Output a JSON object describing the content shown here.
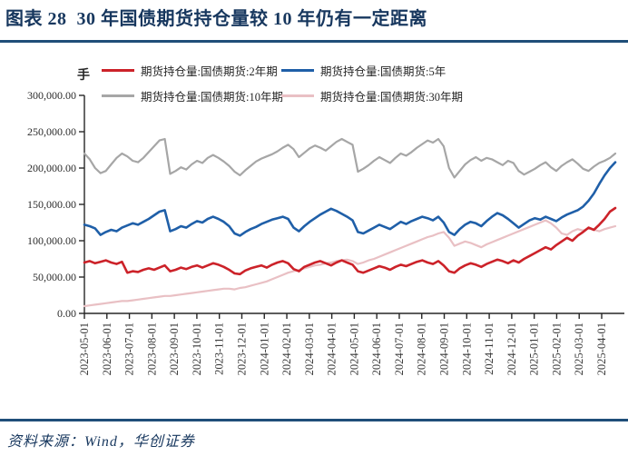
{
  "header": {
    "title": "图表 28  30 年国债期货持仓量较 10 年仍有一定距离"
  },
  "footer": {
    "source": "资料来源：Wind，华创证券"
  },
  "chart_data": {
    "type": "line",
    "title": "30 年国债期货持仓量较 10 年仍有一定距离",
    "unit_label": "手",
    "grid": false,
    "legend_position": "top",
    "ylim": [
      0,
      300000
    ],
    "ytick_step": 50000,
    "ytick_labels": [
      "0.00",
      "50,000.00",
      "100,000.00",
      "150,000.00",
      "200,000.00",
      "250,000.00",
      "300,000.00"
    ],
    "x_tick_labels": [
      "2023-05-01",
      "2023-06-01",
      "2023-07-01",
      "2023-08-01",
      "2023-09-01",
      "2023-10-01",
      "2023-11-01",
      "2023-12-01",
      "2024-01-01",
      "2024-02-01",
      "2024-03-01",
      "2024-04-01",
      "2024-05-01",
      "2024-06-01",
      "2024-07-01",
      "2024-08-01",
      "2024-09-01",
      "2024-10-01",
      "2024-11-01",
      "2024-12-01",
      "2025-01-01",
      "2025-02-01",
      "2025-03-01",
      "2025-04-01"
    ],
    "x_range_note": "weekly observations 2023-05-01 to 2025-04-18",
    "axis_color": "#262626",
    "series": [
      {
        "name": "期货持仓量:国债期货:2年期",
        "color": "#cc2229",
        "width": 2.6,
        "values": [
          70000,
          72000,
          69000,
          71000,
          73000,
          70000,
          68000,
          71000,
          56000,
          58000,
          57000,
          60000,
          62000,
          60000,
          63000,
          66000,
          58000,
          60000,
          63000,
          61000,
          64000,
          66000,
          63000,
          66000,
          69000,
          67000,
          64000,
          60000,
          55000,
          54000,
          59000,
          62000,
          64000,
          66000,
          63000,
          67000,
          70000,
          72000,
          69000,
          61000,
          58000,
          64000,
          67000,
          70000,
          72000,
          69000,
          66000,
          70000,
          73000,
          70000,
          67000,
          58000,
          56000,
          59000,
          62000,
          65000,
          63000,
          60000,
          64000,
          67000,
          65000,
          68000,
          71000,
          73000,
          70000,
          68000,
          72000,
          66000,
          58000,
          56000,
          62000,
          66000,
          69000,
          67000,
          64000,
          68000,
          71000,
          74000,
          72000,
          69000,
          73000,
          70000,
          75000,
          79000,
          83000,
          87000,
          91000,
          88000,
          94000,
          99000,
          104000,
          100000,
          107000,
          112000,
          118000,
          115000,
          122000,
          130000,
          140000,
          145000
        ]
      },
      {
        "name": "期货持仓量:国债期货:5年",
        "color": "#1f5fa8",
        "width": 2.6,
        "values": [
          122000,
          120000,
          117000,
          108000,
          112000,
          115000,
          113000,
          118000,
          121000,
          124000,
          122000,
          126000,
          130000,
          135000,
          140000,
          142000,
          113000,
          116000,
          120000,
          118000,
          123000,
          127000,
          125000,
          130000,
          133000,
          130000,
          126000,
          120000,
          110000,
          107000,
          112000,
          116000,
          119000,
          123000,
          126000,
          129000,
          131000,
          133000,
          130000,
          118000,
          113000,
          120000,
          126000,
          131000,
          136000,
          140000,
          144000,
          141000,
          137000,
          133000,
          128000,
          112000,
          110000,
          114000,
          118000,
          122000,
          119000,
          116000,
          121000,
          126000,
          123000,
          127000,
          130000,
          133000,
          131000,
          128000,
          133000,
          125000,
          112000,
          108000,
          116000,
          122000,
          126000,
          124000,
          120000,
          127000,
          133000,
          138000,
          135000,
          130000,
          124000,
          118000,
          123000,
          128000,
          131000,
          129000,
          133000,
          130000,
          127000,
          132000,
          136000,
          139000,
          142000,
          147000,
          155000,
          165000,
          178000,
          190000,
          200000,
          208000
        ]
      },
      {
        "name": "期货持仓量:国债期货:10年期",
        "color": "#a6a6a6",
        "width": 2.2,
        "values": [
          220000,
          212000,
          200000,
          193000,
          196000,
          205000,
          214000,
          220000,
          216000,
          210000,
          208000,
          214000,
          222000,
          230000,
          238000,
          240000,
          192000,
          196000,
          201000,
          198000,
          205000,
          210000,
          207000,
          214000,
          218000,
          214000,
          209000,
          203000,
          195000,
          190000,
          197000,
          203000,
          209000,
          213000,
          216000,
          219000,
          223000,
          228000,
          232000,
          226000,
          215000,
          221000,
          227000,
          231000,
          228000,
          224000,
          230000,
          236000,
          240000,
          236000,
          232000,
          195000,
          199000,
          204000,
          210000,
          215000,
          211000,
          207000,
          214000,
          220000,
          217000,
          222000,
          228000,
          233000,
          238000,
          235000,
          240000,
          230000,
          200000,
          187000,
          196000,
          205000,
          211000,
          215000,
          210000,
          214000,
          212000,
          208000,
          204000,
          210000,
          207000,
          196000,
          191000,
          195000,
          199000,
          204000,
          208000,
          201000,
          196000,
          203000,
          208000,
          212000,
          206000,
          199000,
          196000,
          202000,
          207000,
          210000,
          214000,
          220000
        ]
      },
      {
        "name": "期货持仓量:国债期货:30年期",
        "color": "#e9c0c4",
        "width": 2.2,
        "values": [
          10000,
          11000,
          12000,
          13000,
          14000,
          15000,
          16000,
          17000,
          17000,
          18000,
          19000,
          20000,
          21000,
          22000,
          23000,
          24000,
          24000,
          25000,
          26000,
          27000,
          28000,
          29000,
          30000,
          31000,
          32000,
          33000,
          34000,
          34000,
          33000,
          35000,
          36000,
          38000,
          40000,
          42000,
          44000,
          47000,
          50000,
          53000,
          56000,
          58000,
          60000,
          62000,
          64000,
          66000,
          67000,
          69000,
          70000,
          72000,
          73000,
          74000,
          72000,
          68000,
          70000,
          73000,
          75000,
          78000,
          81000,
          84000,
          87000,
          90000,
          93000,
          96000,
          99000,
          102000,
          105000,
          107000,
          110000,
          112000,
          104000,
          93000,
          96000,
          99000,
          97000,
          94000,
          91000,
          95000,
          98000,
          101000,
          104000,
          107000,
          110000,
          113000,
          116000,
          119000,
          122000,
          125000,
          128000,
          124000,
          118000,
          110000,
          108000,
          113000,
          116000,
          114000,
          117000,
          115000,
          113000,
          116000,
          118000,
          120000
        ]
      }
    ]
  }
}
